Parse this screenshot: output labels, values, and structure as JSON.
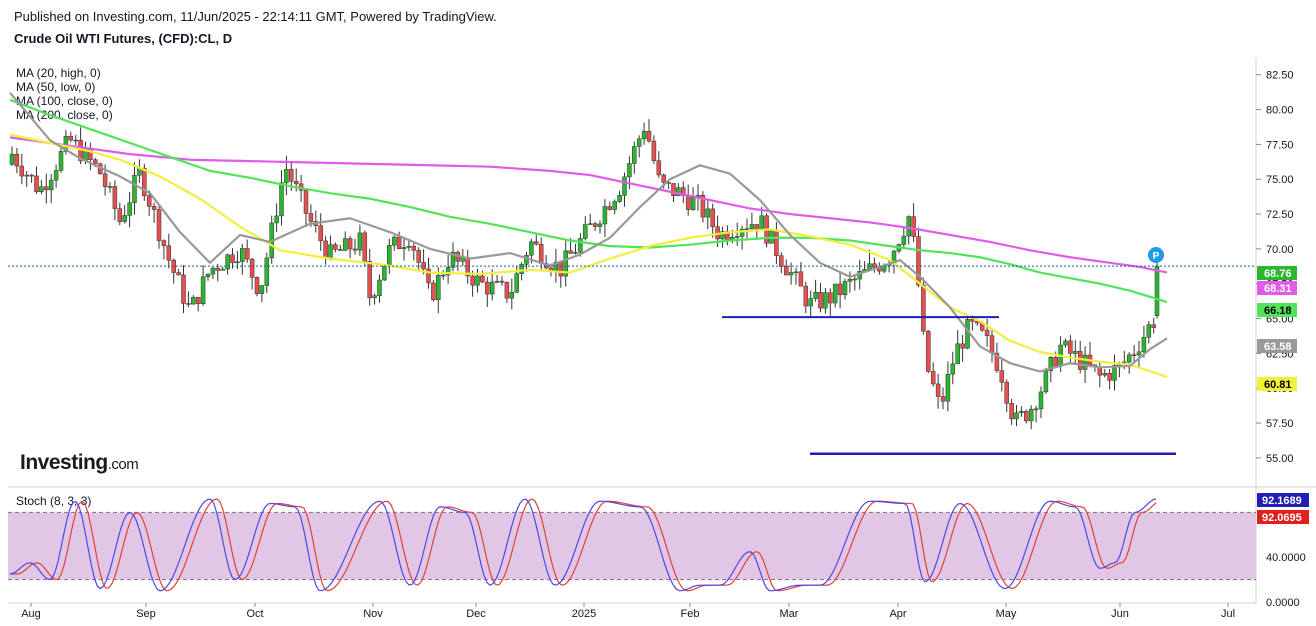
{
  "header": {
    "published": "Published on Investing.com, 11/Jun/2025 - 22:14:11 GMT, Powered by TradingView.",
    "instrument": "Crude Oil WTI Futures, (CFD):CL, D"
  },
  "legend": [
    "MA (20, high, 0)",
    "MA (50, low, 0)",
    "MA (100, close, 0)",
    "MA (200, close, 0)"
  ],
  "stoch_label": "Stoch (8, 3, 3)",
  "logo": {
    "main": "Investing",
    "suffix": ".com"
  },
  "p_marker": "P",
  "colors": {
    "up": "#26a69a",
    "up_fill": "#2bb531",
    "down": "#e5504f",
    "wick": "#333333",
    "ma20": "#999999",
    "ma50": "#f2ee3c",
    "ma100": "#52e35a",
    "ma200": "#e05be8",
    "support": "#1f1fb8",
    "stoch_k": "#5046e6",
    "stoch_d": "#e0403d",
    "stoch_band": "#dcbde0"
  },
  "chart_data": [
    {
      "type": "candlestick",
      "title": "Crude Oil WTI Futures, (CFD):CL, D",
      "x_ticks": [
        "Aug",
        "Sep",
        "Oct",
        "Nov",
        "Dec",
        "2025",
        "Feb",
        "Mar",
        "Apr",
        "May",
        "Jun",
        "Jul"
      ],
      "y_ticks": [
        "82.50",
        "80.00",
        "77.50",
        "75.00",
        "72.50",
        "70.00",
        "67.50",
        "65.00",
        "62.50",
        "60.00",
        "57.50",
        "55.00"
      ],
      "ylim": [
        53.7,
        83.7
      ],
      "last_price": 68.76,
      "price_tags": [
        {
          "label": "68.76",
          "value": 68.76,
          "series": "last"
        },
        {
          "label": "68.31",
          "value": 68.31,
          "series": "ma200"
        },
        {
          "label": "66.18",
          "value": 66.18,
          "series": "ma100"
        },
        {
          "label": "63.58",
          "value": 63.58,
          "series": "ma20"
        },
        {
          "label": "60.81",
          "value": 60.81,
          "series": "ma50"
        }
      ],
      "support_lines": [
        {
          "from": "2025-02-20",
          "to": "2025-04-25",
          "value": 65.1
        },
        {
          "from": "2025-03-10",
          "to": "2025-06-20",
          "value": 55.3
        }
      ],
      "ma_series": {
        "ma20": [
          [
            0,
            81.2
          ],
          [
            20,
            79.5
          ],
          [
            40,
            77.8
          ],
          [
            70,
            76.5
          ],
          [
            110,
            75.2
          ],
          [
            140,
            74.0
          ],
          [
            170,
            71.2
          ],
          [
            200,
            69.0
          ],
          [
            230,
            71.0
          ],
          [
            260,
            70.5
          ],
          [
            300,
            71.8
          ],
          [
            340,
            72.2
          ],
          [
            380,
            71.2
          ],
          [
            420,
            70.0
          ],
          [
            460,
            69.3
          ],
          [
            500,
            69.7
          ],
          [
            540,
            68.8
          ],
          [
            570,
            69.6
          ],
          [
            600,
            70.8
          ],
          [
            630,
            73.0
          ],
          [
            660,
            75.0
          ],
          [
            690,
            76.0
          ],
          [
            720,
            75.4
          ],
          [
            750,
            73.5
          ],
          [
            780,
            71.0
          ],
          [
            810,
            69.0
          ],
          [
            840,
            68.0
          ],
          [
            870,
            68.7
          ],
          [
            890,
            69.2
          ],
          [
            910,
            68.0
          ],
          [
            940,
            65.8
          ],
          [
            970,
            63.0
          ],
          [
            1000,
            61.8
          ],
          [
            1030,
            61.2
          ],
          [
            1060,
            61.8
          ],
          [
            1090,
            61.5
          ],
          [
            1120,
            61.6
          ],
          [
            1140,
            62.8
          ],
          [
            1157,
            63.58
          ]
        ],
        "ma50": [
          [
            0,
            78.2
          ],
          [
            40,
            77.6
          ],
          [
            80,
            77.0
          ],
          [
            110,
            76.4
          ],
          [
            150,
            75.2
          ],
          [
            190,
            73.6
          ],
          [
            230,
            71.6
          ],
          [
            270,
            69.9
          ],
          [
            320,
            69.3
          ],
          [
            370,
            68.9
          ],
          [
            420,
            68.3
          ],
          [
            470,
            68.2
          ],
          [
            520,
            68.5
          ],
          [
            560,
            68.3
          ],
          [
            600,
            69.3
          ],
          [
            640,
            70.2
          ],
          [
            680,
            70.8
          ],
          [
            720,
            71.2
          ],
          [
            760,
            71.4
          ],
          [
            800,
            70.9
          ],
          [
            840,
            70.3
          ],
          [
            880,
            69.2
          ],
          [
            910,
            67.5
          ],
          [
            940,
            65.8
          ],
          [
            970,
            64.8
          ],
          [
            1000,
            63.4
          ],
          [
            1030,
            62.6
          ],
          [
            1060,
            62.2
          ],
          [
            1090,
            61.9
          ],
          [
            1120,
            61.7
          ],
          [
            1157,
            60.81
          ]
        ],
        "ma100": [
          [
            0,
            80.7
          ],
          [
            40,
            79.6
          ],
          [
            80,
            78.6
          ],
          [
            120,
            77.6
          ],
          [
            160,
            76.6
          ],
          [
            200,
            75.6
          ],
          [
            240,
            75.1
          ],
          [
            280,
            74.5
          ],
          [
            320,
            74.0
          ],
          [
            360,
            73.6
          ],
          [
            400,
            73.0
          ],
          [
            440,
            72.3
          ],
          [
            480,
            71.8
          ],
          [
            520,
            71.2
          ],
          [
            560,
            70.6
          ],
          [
            600,
            70.2
          ],
          [
            640,
            70.1
          ],
          [
            680,
            70.3
          ],
          [
            720,
            70.6
          ],
          [
            760,
            70.8
          ],
          [
            800,
            70.8
          ],
          [
            840,
            70.6
          ],
          [
            880,
            70.2
          ],
          [
            910,
            69.9
          ],
          [
            940,
            69.7
          ],
          [
            970,
            69.4
          ],
          [
            1000,
            68.9
          ],
          [
            1030,
            68.3
          ],
          [
            1060,
            67.9
          ],
          [
            1090,
            67.5
          ],
          [
            1120,
            67.0
          ],
          [
            1157,
            66.18
          ]
        ],
        "ma200": [
          [
            0,
            78.0
          ],
          [
            60,
            77.4
          ],
          [
            120,
            76.8
          ],
          [
            180,
            76.4
          ],
          [
            240,
            76.3
          ],
          [
            300,
            76.2
          ],
          [
            360,
            76.1
          ],
          [
            420,
            76.0
          ],
          [
            480,
            75.9
          ],
          [
            540,
            75.6
          ],
          [
            580,
            75.3
          ],
          [
            620,
            74.7
          ],
          [
            660,
            74.1
          ],
          [
            700,
            73.5
          ],
          [
            740,
            72.9
          ],
          [
            780,
            72.5
          ],
          [
            820,
            72.2
          ],
          [
            860,
            71.9
          ],
          [
            900,
            71.5
          ],
          [
            940,
            71.0
          ],
          [
            980,
            70.5
          ],
          [
            1020,
            69.9
          ],
          [
            1060,
            69.4
          ],
          [
            1100,
            69.0
          ],
          [
            1130,
            68.7
          ],
          [
            1157,
            68.31
          ]
        ]
      }
    },
    {
      "type": "line",
      "title": "Stoch (8, 3, 3)",
      "y_ticks": [
        "40.0000",
        "0.0000"
      ],
      "ylim": [
        0,
        100
      ],
      "bands": [
        20,
        80
      ],
      "last_values": [
        {
          "label": "92.1689",
          "value": 92.1689,
          "series": "k"
        },
        {
          "label": "92.0695",
          "value": 92.0695,
          "series": "d"
        }
      ]
    }
  ]
}
